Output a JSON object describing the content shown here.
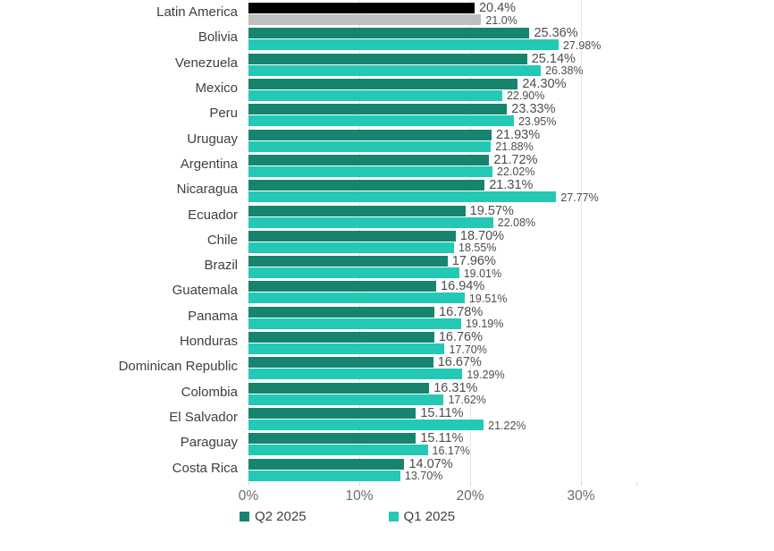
{
  "chart_data": {
    "type": "bar",
    "orientation": "horizontal",
    "title": "",
    "xlabel": "",
    "ylabel": "",
    "xlim": [
      0,
      35
    ],
    "x_tick_values": [
      0,
      10,
      20,
      30
    ],
    "x_tick_labels": [
      "0%",
      "10%",
      "20%",
      "30%"
    ],
    "grid": true,
    "legend_position": "bottom",
    "categories": [
      "Latin America",
      "Bolivia",
      "Venezuela",
      "Mexico",
      "Peru",
      "Uruguay",
      "Argentina",
      "Nicaragua",
      "Ecuador",
      "Chile",
      "Brazil",
      "Guatemala",
      "Panama",
      "Honduras",
      "Dominican Republic",
      "Colombia",
      "El Salvador",
      "Paraguay",
      "Costa Rica"
    ],
    "series": [
      {
        "name": "Q2 2025",
        "color": "#16846F",
        "values": [
          20.4,
          25.36,
          25.14,
          24.3,
          23.33,
          21.93,
          21.72,
          21.31,
          19.57,
          18.7,
          17.96,
          16.94,
          16.78,
          16.76,
          16.67,
          16.31,
          15.11,
          15.11,
          14.07
        ],
        "labels": [
          "20.4%",
          "25.36%",
          "25.14%",
          "24.30%",
          "23.33%",
          "21.93%",
          "21.72%",
          "21.31%",
          "19.57%",
          "18.70%",
          "17.96%",
          "16.94%",
          "16.78%",
          "16.76%",
          "16.67%",
          "16.31%",
          "15.11%",
          "15.11%",
          "14.07%"
        ]
      },
      {
        "name": "Q1 2025",
        "color": "#23C9B4",
        "values": [
          21.0,
          27.98,
          26.38,
          22.9,
          23.95,
          21.88,
          22.02,
          27.77,
          22.08,
          18.55,
          19.01,
          19.51,
          19.19,
          17.7,
          19.29,
          17.62,
          21.22,
          16.17,
          13.7
        ],
        "labels": [
          "21.0%",
          "27.98%",
          "26.38%",
          "22.90%",
          "23.95%",
          "21.88%",
          "22.02%",
          "27.77%",
          "22.08%",
          "18.55%",
          "19.01%",
          "19.51%",
          "19.19%",
          "17.70%",
          "19.29%",
          "17.62%",
          "21.22%",
          "16.17%",
          "13.70%"
        ]
      }
    ],
    "highlight": {
      "category": "Latin America",
      "series_colors": [
        "#000000",
        "#BFBFBF"
      ]
    }
  },
  "colors": {
    "background": "#FFFFFF",
    "gridline": "#E3E3E3",
    "tick": "#D9D9D9",
    "category_text": "#3F3F3F",
    "data_label_text": "#4D4D4D",
    "axis_text": "#6C6C6C",
    "legend_text": "#3F3F3F"
  }
}
